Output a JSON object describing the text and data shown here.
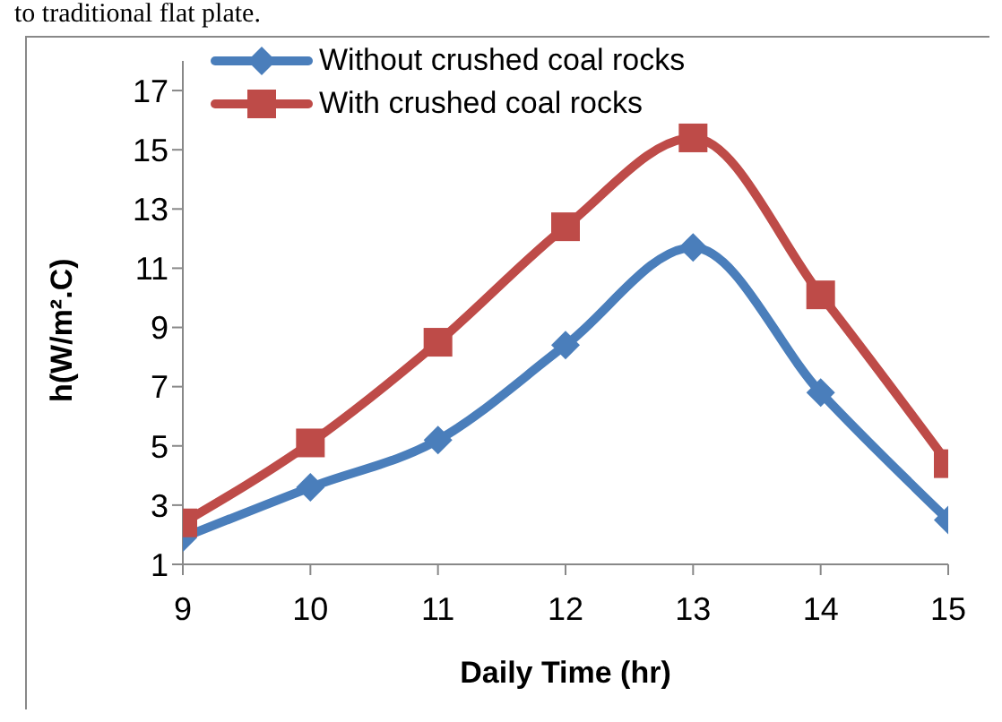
{
  "chart_data": {
    "type": "line",
    "annotations": [
      "to traditional flat plate."
    ],
    "xlabel": "Daily Time (hr)",
    "ylabel": "h(W/m².C)",
    "x": [
      9,
      10,
      11,
      12,
      13,
      14,
      15
    ],
    "xlim": [
      9,
      15
    ],
    "xticks": [
      9,
      10,
      11,
      12,
      13,
      14,
      15
    ],
    "ylim": [
      1,
      18
    ],
    "yticks": [
      1,
      3,
      5,
      7,
      9,
      11,
      13,
      15,
      17
    ],
    "grid": false,
    "legend": "top left",
    "series": [
      {
        "name": "Without crushed  coal rocks",
        "color": "#4a7ebb",
        "marker": "diamond",
        "values": [
          1.9,
          3.6,
          5.2,
          8.4,
          11.7,
          6.8,
          2.5
        ]
      },
      {
        "name": "With crushed coal rocks",
        "color": "#be4b48",
        "marker": "square",
        "values": [
          2.4,
          5.1,
          8.5,
          12.4,
          15.4,
          10.1,
          4.4
        ]
      }
    ]
  }
}
